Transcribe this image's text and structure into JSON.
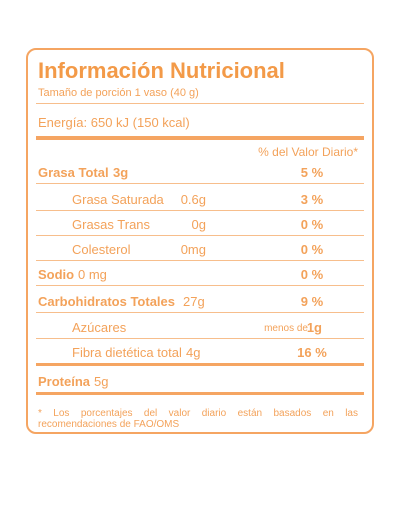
{
  "title": "Información Nutricional",
  "serving": "Tamaño de porción 1 vaso (40 g)",
  "energy": "Energía: 650 kJ (150 kcal)",
  "dv_header": "% del Valor Diario*",
  "rows": [
    {
      "name": "Grasa Total",
      "amount": "3g",
      "dv": "5 %"
    },
    {
      "name": "Grasa Saturada",
      "amount": "0.6g",
      "dv": "3 %"
    },
    {
      "name": "Grasas Trans",
      "amount": "0g",
      "dv": "0 %"
    },
    {
      "name": "Colesterol",
      "amount": "0mg",
      "dv": "0 %"
    },
    {
      "name": "Sodio",
      "amount": "0 mg",
      "dv": "0 %"
    },
    {
      "name": "Carbohidratos Totales",
      "amount": "27g",
      "dv": "9 %"
    },
    {
      "name": "Azúcares",
      "dv_prefix": "menos de",
      "dv": "1g"
    },
    {
      "name": "Fibra dietética total",
      "amount": "4g",
      "dv": "16 %"
    },
    {
      "name": "Proteína",
      "amount": "5g"
    }
  ],
  "footnote": "* Los porcentajes del valor diario están basados en las recomendaciones de FAO/OMS"
}
